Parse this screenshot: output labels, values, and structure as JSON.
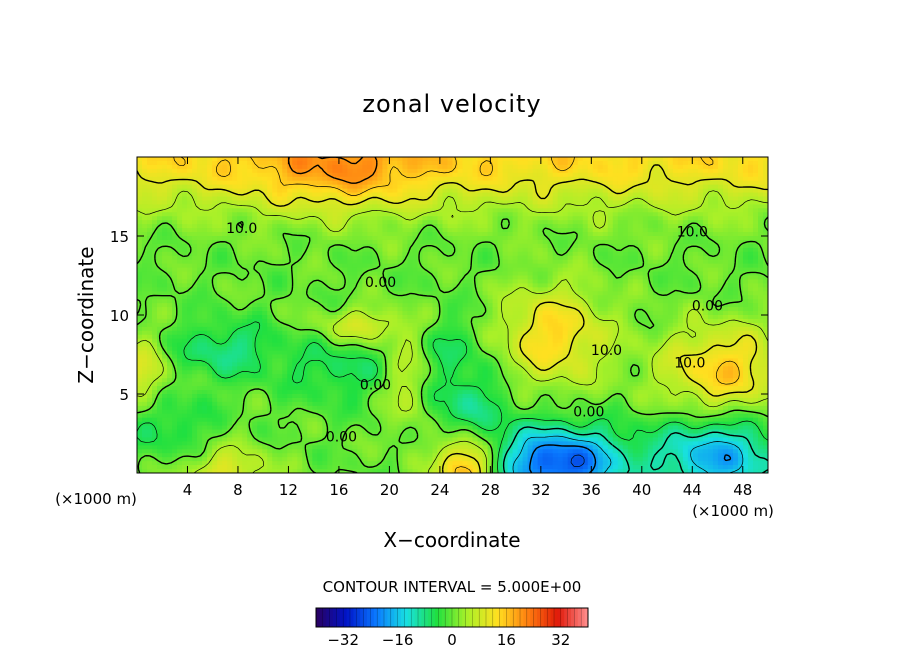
{
  "chart_data": {
    "type": "heatmap",
    "title": "zonal velocity",
    "xlabel": "X−coordinate",
    "ylabel": "Z−coordinate",
    "x_unit_label": "(×1000 m)",
    "xlim": [
      0,
      50
    ],
    "ylim": [
      0,
      20
    ],
    "x_ticks": [
      {
        "value": 4,
        "label": "4"
      },
      {
        "value": 8,
        "label": "8"
      },
      {
        "value": 12,
        "label": "12"
      },
      {
        "value": 16,
        "label": "16"
      },
      {
        "value": 20,
        "label": "20"
      },
      {
        "value": 24,
        "label": "24"
      },
      {
        "value": 28,
        "label": "28"
      },
      {
        "value": 32,
        "label": "32"
      },
      {
        "value": 36,
        "label": "36"
      },
      {
        "value": 40,
        "label": "40"
      },
      {
        "value": 44,
        "label": "44"
      },
      {
        "value": 48,
        "label": "48"
      }
    ],
    "y_ticks": [
      {
        "value": 5,
        "label": "5"
      },
      {
        "value": 10,
        "label": "10"
      },
      {
        "value": 15,
        "label": "15"
      }
    ],
    "contour_interval_text": "CONTOUR INTERVAL = 5.000E+00",
    "contour_labels": [
      {
        "text": "10.0",
        "x": 8.3,
        "y": 15.5
      },
      {
        "text": "10.0",
        "x": 44.0,
        "y": 15.3
      },
      {
        "text": "0.00",
        "x": 19.3,
        "y": 12.1
      },
      {
        "text": "0.00",
        "x": 45.2,
        "y": 10.6
      },
      {
        "text": "10.0",
        "x": 37.2,
        "y": 7.8
      },
      {
        "text": "10.0",
        "x": 43.8,
        "y": 7.0
      },
      {
        "text": "0.00",
        "x": 18.9,
        "y": 5.6
      },
      {
        "text": "0.00",
        "x": 35.8,
        "y": 3.9
      },
      {
        "text": "0.00",
        "x": 16.2,
        "y": 2.3
      }
    ],
    "colorbar": {
      "range": [
        -40,
        40
      ],
      "ticks": [
        {
          "value": -32,
          "label": "−32"
        },
        {
          "value": -16,
          "label": "−16"
        },
        {
          "value": 0,
          "label": "0"
        },
        {
          "value": 16,
          "label": "16"
        },
        {
          "value": 32,
          "label": "32"
        }
      ],
      "colors": [
        "#2a0060",
        "#0014c8",
        "#0a7aff",
        "#18e0e0",
        "#20e040",
        "#aaf028",
        "#ffe020",
        "#ff8010",
        "#e01808",
        "#ff9090"
      ]
    },
    "field_features": [
      {
        "x": 25,
        "y": 20,
        "sx": 60,
        "sy": 2.2,
        "amp": 14
      },
      {
        "x": 16,
        "y": 19,
        "sx": 4.5,
        "sy": 1.8,
        "amp": 8
      },
      {
        "x": 33,
        "y": 8.7,
        "sx": 3,
        "sy": 2.2,
        "amp": 14
      },
      {
        "x": 46.5,
        "y": 6.5,
        "sx": 3.5,
        "sy": 2,
        "amp": 15
      },
      {
        "x": 26,
        "y": 0.3,
        "sx": 1.6,
        "sy": 1.5,
        "amp": 20
      },
      {
        "x": 7,
        "y": 0,
        "sx": 2.5,
        "sy": 1.2,
        "amp": 10
      },
      {
        "x": 21.5,
        "y": 5.5,
        "sx": 1.3,
        "sy": 2.2,
        "amp": 8
      },
      {
        "x": 0.5,
        "y": 6.3,
        "sx": 1.5,
        "sy": 1.6,
        "amp": 10
      },
      {
        "x": 18,
        "y": 9.3,
        "sx": 2.5,
        "sy": 0.8,
        "amp": 9
      },
      {
        "x": 33.5,
        "y": 0.6,
        "sx": 3.5,
        "sy": 1.6,
        "amp": -26
      },
      {
        "x": 46,
        "y": 1,
        "sx": 3.5,
        "sy": 1.8,
        "amp": -18
      },
      {
        "x": 7,
        "y": 7.8,
        "sx": 3,
        "sy": 1.3,
        "amp": -8
      },
      {
        "x": 26,
        "y": 4.2,
        "sx": 2.5,
        "sy": 1.7,
        "amp": -8
      },
      {
        "x": 2.5,
        "y": 3,
        "sx": 2.5,
        "sy": 1.6,
        "amp": -6
      },
      {
        "x": 16,
        "y": 6.5,
        "sx": 3,
        "sy": 1.5,
        "amp": -6
      },
      {
        "x": 25,
        "y": 8,
        "sx": 2,
        "sy": 1.5,
        "amp": -5
      }
    ]
  }
}
